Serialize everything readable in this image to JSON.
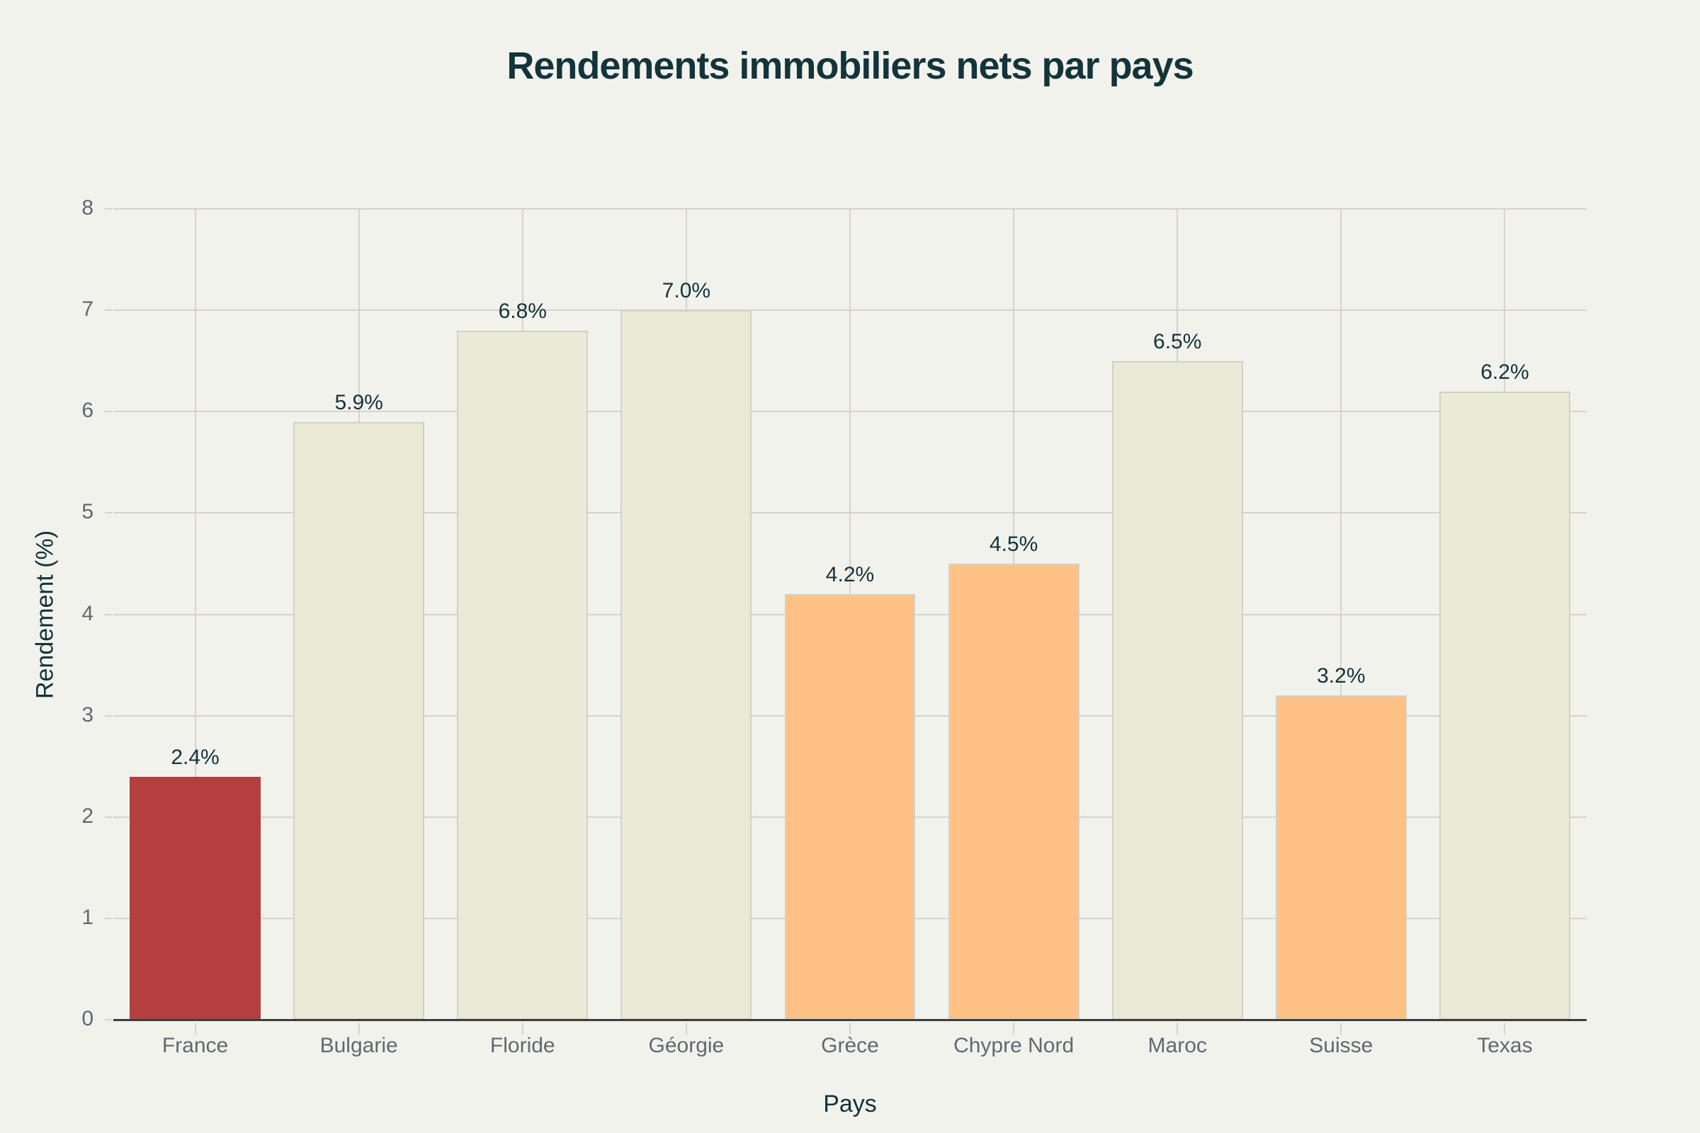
{
  "chart_data": {
    "type": "bar",
    "title": "Rendements immobiliers nets par pays",
    "xlabel": "Pays",
    "ylabel": "Rendement (%)",
    "ylim": [
      0,
      8
    ],
    "yticks": [
      "0",
      "1",
      "2",
      "3",
      "4",
      "5",
      "6",
      "7",
      "8"
    ],
    "grid": true,
    "legend": null,
    "categories": [
      "France",
      "Bulgarie",
      "Floride",
      "Géorgie",
      "Grèce",
      "Chypre Nord",
      "Maroc",
      "Suisse",
      "Texas"
    ],
    "values": [
      2.4,
      5.9,
      6.8,
      7.0,
      4.2,
      4.5,
      6.5,
      3.2,
      6.2
    ],
    "value_labels": [
      "2.4%",
      "5.9%",
      "6.8%",
      "7.0%",
      "4.2%",
      "4.5%",
      "6.5%",
      "3.2%",
      "6.2%"
    ],
    "bar_colors": [
      "#b33f3e",
      "#ebead6",
      "#ebead6",
      "#ebead6",
      "#ffc185",
      "#ffc185",
      "#ebead6",
      "#ffc185",
      "#ebead6"
    ]
  },
  "colors": {
    "background": "#f2f2ec",
    "highlight": "#b33f3e",
    "high_yield": "#ebead6",
    "mid_yield": "#ffc185",
    "text_dark": "#13343b",
    "text_muted": "#5e6a71"
  }
}
